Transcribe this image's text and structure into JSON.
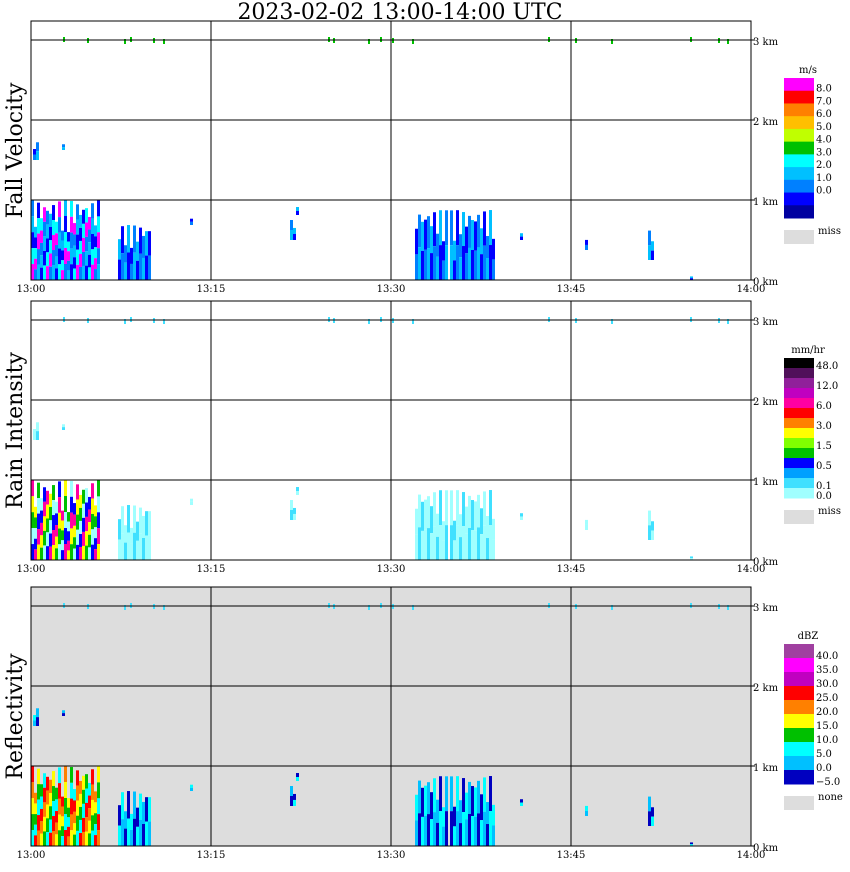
{
  "title": "2023-02-02  13:00-14:00 UTC",
  "chart_data": [
    {
      "type": "heatmap",
      "ylabel": "Fall Velocity",
      "x_ticks": [
        "13:00",
        "13:15",
        "13:30",
        "13:45",
        "14:00"
      ],
      "y_ticks": [
        "0 km",
        "1 km",
        "2 km",
        "3 km"
      ],
      "xlim": [
        "13:00",
        "14:00"
      ],
      "ylim_km": [
        0,
        3.05
      ],
      "background": "#ffffff",
      "grid": true,
      "colorbar": {
        "unit": "m/s",
        "labels": [
          "8.0",
          "7.0",
          "6.0",
          "5.0",
          "4.0",
          "3.0",
          "2.0",
          "1.0",
          "0.0"
        ],
        "colors": [
          "#ff00ff",
          "#ff0000",
          "#ff8000",
          "#ffbf00",
          "#c0ff00",
          "#00c000",
          "#00ffff",
          "#00c0ff",
          "#0080ff",
          "#0000ff",
          "#0000a0"
        ],
        "missing_label": "miss",
        "missing_color": "#dddddd"
      }
    },
    {
      "type": "heatmap",
      "ylabel": "Rain Intensity",
      "x_ticks": [
        "13:00",
        "13:15",
        "13:30",
        "13:45",
        "14:00"
      ],
      "y_ticks": [
        "0 km",
        "1 km",
        "2 km",
        "3 km"
      ],
      "xlim": [
        "13:00",
        "14:00"
      ],
      "ylim_km": [
        0,
        3.05
      ],
      "background": "#ffffff",
      "grid": true,
      "colorbar": {
        "unit": "mm/hr",
        "labels": [
          "48.0",
          "12.0",
          "6.0",
          "3.0",
          "1.5",
          "0.5",
          "0.1",
          "0.0"
        ],
        "label_slots": [
          0,
          2,
          4,
          6,
          8,
          10,
          12,
          13
        ],
        "colors": [
          "#000000",
          "#50105a",
          "#90209a",
          "#c000c0",
          "#ff00a0",
          "#ff0000",
          "#ff8000",
          "#ffff00",
          "#80ff00",
          "#00c000",
          "#0000ff",
          "#00a0ff",
          "#40e0ff",
          "#a0ffff"
        ],
        "missing_label": "miss",
        "missing_color": "#dddddd"
      }
    },
    {
      "type": "heatmap",
      "ylabel": "Reflectivity",
      "x_ticks": [
        "13:00",
        "13:15",
        "13:30",
        "13:45",
        "14:00"
      ],
      "y_ticks": [
        "0 km",
        "1 km",
        "2 km",
        "3 km"
      ],
      "xlim": [
        "13:00",
        "14:00"
      ],
      "ylim_km": [
        0,
        3.05
      ],
      "background": "#dddddd",
      "grid": true,
      "colorbar": {
        "unit": "dBZ",
        "labels": [
          "40.0",
          "35.0",
          "30.0",
          "25.0",
          "20.0",
          "15.0",
          "10.0",
          "5.0",
          "0.0",
          "−5.0"
        ],
        "colors": [
          "#a040a0",
          "#ff00ff",
          "#c000c0",
          "#ff0000",
          "#ff8000",
          "#ffff00",
          "#00c000",
          "#00ffff",
          "#00c0ff",
          "#0000c0"
        ],
        "missing_label": "none",
        "missing_color": "#dddddd"
      }
    }
  ]
}
